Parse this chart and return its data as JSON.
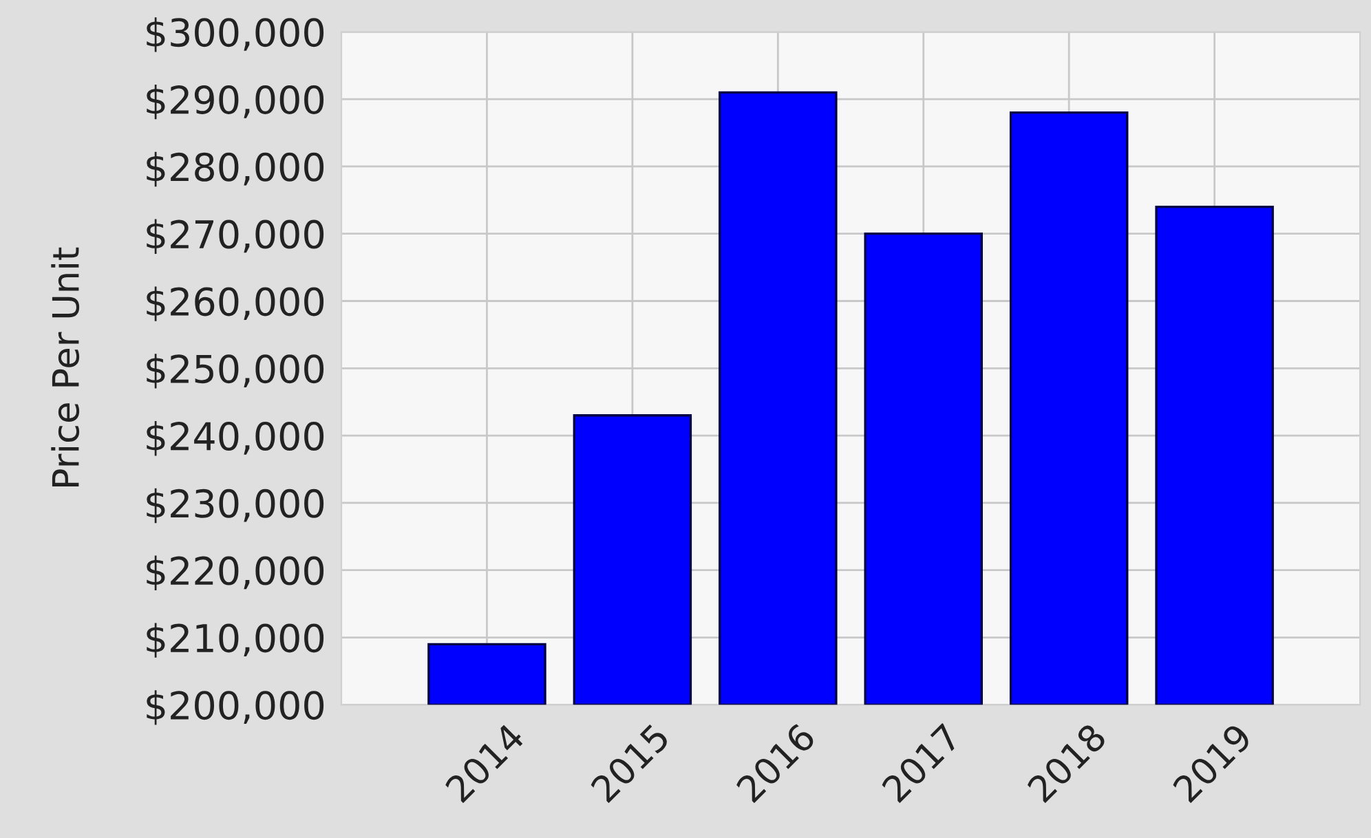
{
  "chart_data": {
    "type": "bar",
    "ylabel": "Price Per Unit",
    "categories": [
      "2014",
      "2015",
      "2016",
      "2017",
      "2018",
      "2019"
    ],
    "values": [
      209000,
      243000,
      291000,
      270000,
      288000,
      274000
    ],
    "color": "#0000ff",
    "ylim": [
      200000,
      300000
    ],
    "yticks": [
      {
        "value": 200000,
        "label": "$200,000"
      },
      {
        "value": 210000,
        "label": "$210,000"
      },
      {
        "value": 220000,
        "label": "$220,000"
      },
      {
        "value": 230000,
        "label": "$230,000"
      },
      {
        "value": 240000,
        "label": "$240,000"
      },
      {
        "value": 250000,
        "label": "$250,000"
      },
      {
        "value": 260000,
        "label": "$260,000"
      },
      {
        "value": 270000,
        "label": "$270,000"
      },
      {
        "value": 280000,
        "label": "$280,000"
      },
      {
        "value": 290000,
        "label": "$290,000"
      },
      {
        "value": 300000,
        "label": "$300,000"
      }
    ],
    "grid": true
  }
}
